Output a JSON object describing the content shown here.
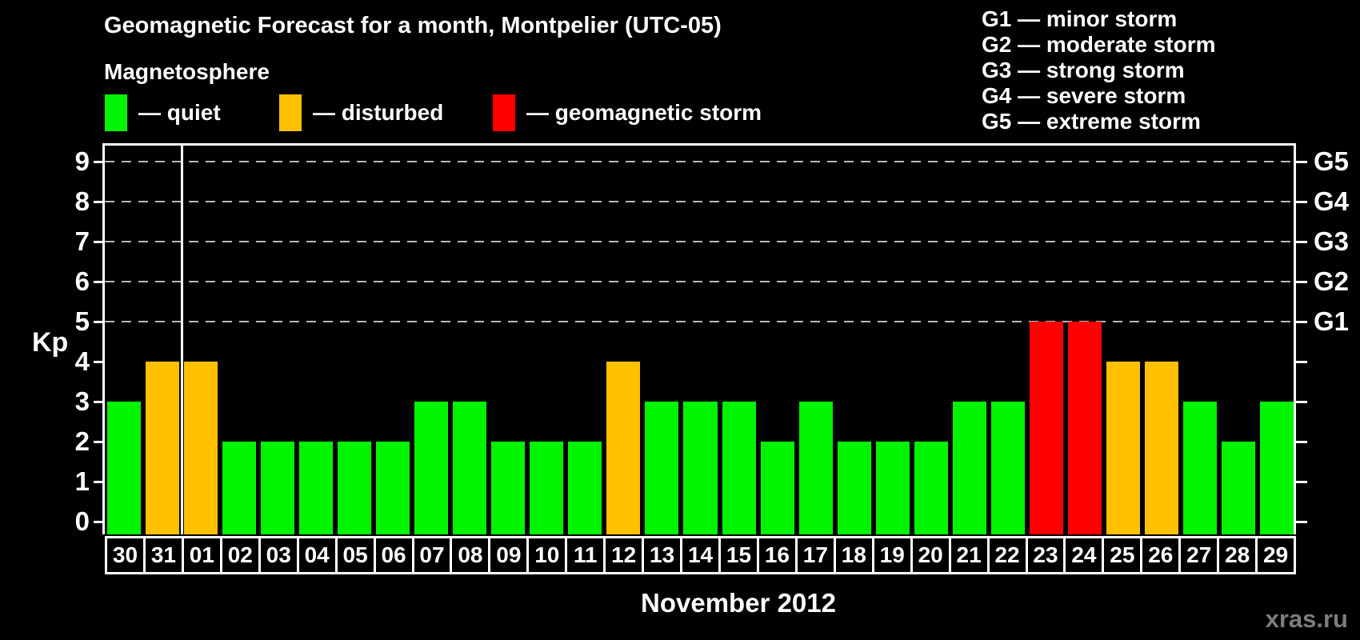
{
  "title": "Geomagnetic Forecast for a month, Montpelier (UTC-05)",
  "subtitle": "Magnetosphere",
  "legend": [
    {
      "label": "— quiet",
      "status": "quiet"
    },
    {
      "label": "— disturbed",
      "status": "disturbed"
    },
    {
      "label": "— geomagnetic storm",
      "status": "storm"
    }
  ],
  "g_legend": [
    "G1 — minor storm",
    "G2 — moderate storm",
    "G3 — strong storm",
    "G4 — severe storm",
    "G5 — extreme storm"
  ],
  "colors": {
    "quiet": "#00f400",
    "disturbed": "#ffc000",
    "storm": "#ff0000",
    "grid": "#b8b8b8",
    "axis": "#ffffff",
    "watermark": "#7d7d7d"
  },
  "y_axis": {
    "label": "Kp",
    "ticks": [
      0,
      1,
      2,
      3,
      4,
      5,
      6,
      7,
      8,
      9
    ]
  },
  "right_axis": {
    "labels": [
      {
        "text": "G1",
        "kp": 5
      },
      {
        "text": "G2",
        "kp": 6
      },
      {
        "text": "G3",
        "kp": 7
      },
      {
        "text": "G4",
        "kp": 8
      },
      {
        "text": "G5",
        "kp": 9
      }
    ]
  },
  "x_axis": {
    "title": "November 2012"
  },
  "watermark": "xras.ru",
  "chart_data": {
    "type": "bar",
    "title": "Geomagnetic Forecast for a month, Montpelier (UTC-05)",
    "xlabel": "November 2012",
    "ylabel": "Kp",
    "ylim": [
      0,
      9
    ],
    "grid": "dashed horizontal lines at Kp 5-9 only",
    "legend_position": "top-left",
    "gridlines_kp": [
      5,
      6,
      7,
      8,
      9
    ],
    "month_divider_after_index": 1,
    "categories": [
      "30",
      "31",
      "01",
      "02",
      "03",
      "04",
      "05",
      "06",
      "07",
      "08",
      "09",
      "10",
      "11",
      "12",
      "13",
      "14",
      "15",
      "16",
      "17",
      "18",
      "19",
      "20",
      "21",
      "22",
      "23",
      "24",
      "25",
      "26",
      "27",
      "28",
      "29"
    ],
    "values": [
      3,
      4,
      4,
      2,
      2,
      2,
      2,
      2,
      3,
      3,
      2,
      2,
      2,
      4,
      3,
      3,
      3,
      2,
      3,
      2,
      2,
      2,
      3,
      3,
      5,
      5,
      4,
      4,
      3,
      2,
      3
    ],
    "statuses": [
      "quiet",
      "disturbed",
      "disturbed",
      "quiet",
      "quiet",
      "quiet",
      "quiet",
      "quiet",
      "quiet",
      "quiet",
      "quiet",
      "quiet",
      "quiet",
      "disturbed",
      "quiet",
      "quiet",
      "quiet",
      "quiet",
      "quiet",
      "quiet",
      "quiet",
      "quiet",
      "quiet",
      "quiet",
      "storm",
      "storm",
      "disturbed",
      "disturbed",
      "quiet",
      "quiet",
      "quiet"
    ]
  }
}
